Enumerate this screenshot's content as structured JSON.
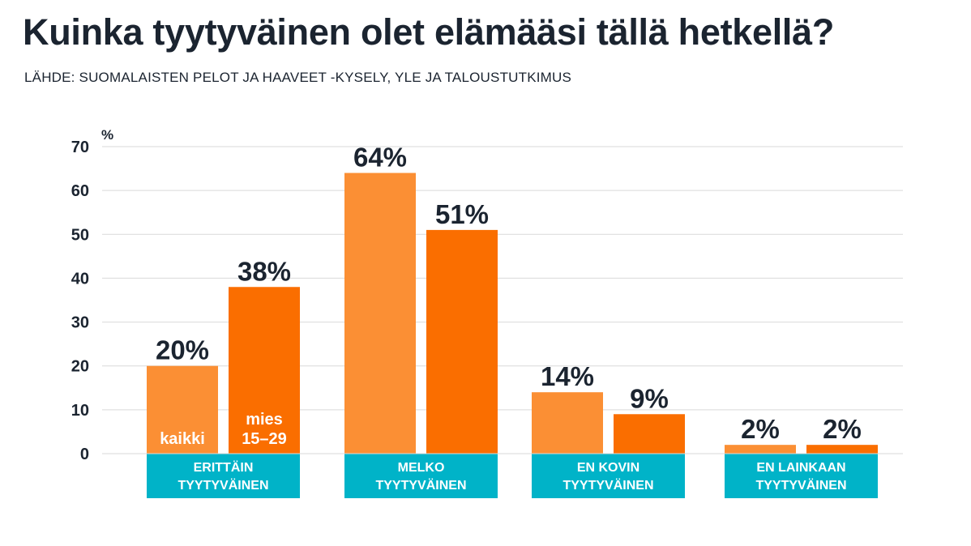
{
  "title": "Kuinka tyytyväinen olet elämääsi tällä hetkellä?",
  "subtitle": "LÄHDE: SUOMALAISTEN PELOT JA HAAVEET -KYSELY, YLE JA TALOUSTUTKIMUS",
  "colors": {
    "series_kaikki": "#fb8f34",
    "series_mies": "#fa6e00",
    "category_band": "#00b3c8",
    "grid": "#d9d9d9",
    "text": "#1b2430"
  },
  "chart_data": {
    "type": "bar",
    "ylabel": "%",
    "ylim": [
      0,
      70
    ],
    "yticks": [
      0,
      10,
      20,
      30,
      40,
      50,
      60,
      70
    ],
    "grid": true,
    "categories": [
      [
        "ERITTÄIN",
        "TYYTYVÄINEN"
      ],
      [
        "MELKO",
        "TYYTYVÄINEN"
      ],
      [
        "EN KOVIN",
        "TYYTYVÄINEN"
      ],
      [
        "EN LAINKAAN",
        "TYYTYVÄINEN"
      ]
    ],
    "series": [
      {
        "name": "kaikki",
        "values": [
          20,
          64,
          14,
          2
        ],
        "labels": [
          "20%",
          "64%",
          "14%",
          "2%"
        ]
      },
      {
        "name": "mies 15–29",
        "name_lines": [
          "mies",
          "15–29"
        ],
        "values": [
          38,
          51,
          9,
          2
        ],
        "labels": [
          "38%",
          "51%",
          "9%",
          "2%"
        ]
      }
    ]
  }
}
